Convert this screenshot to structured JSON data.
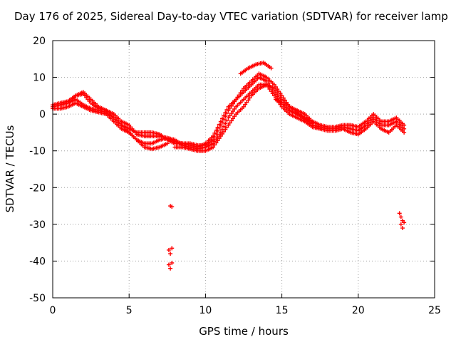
{
  "chart_data": {
    "type": "scatter",
    "title": "Day 176 of 2025, Sidereal Day-to-day VTEC variation (SDTVAR) for receiver lamp",
    "xlabel": "GPS time / hours",
    "ylabel": "SDTVAR / TECUs",
    "xlim": [
      0,
      25
    ],
    "ylim": [
      -50,
      20
    ],
    "xticks": [
      0,
      5,
      10,
      15,
      20,
      25
    ],
    "yticks": [
      -50,
      -40,
      -30,
      -20,
      -10,
      0,
      10,
      20
    ],
    "grid": true,
    "marker": "+",
    "color": "#ff0000",
    "series": [
      {
        "name": "SDTVAR",
        "tracks": [
          [
            [
              0,
              2
            ],
            [
              0.5,
              2.5
            ],
            [
              1,
              3
            ],
            [
              1.5,
              4
            ],
            [
              2,
              2.5
            ],
            [
              2.5,
              1.5
            ],
            [
              3,
              1
            ],
            [
              3.5,
              0.5
            ],
            [
              4,
              -1
            ],
            [
              4.5,
              -3
            ],
            [
              5,
              -4
            ],
            [
              5.5,
              -5
            ],
            [
              6,
              -5
            ],
            [
              6.5,
              -5
            ],
            [
              7,
              -5.5
            ],
            [
              7.5,
              -7
            ],
            [
              8,
              -8
            ],
            [
              8.5,
              -8
            ],
            [
              9,
              -8.5
            ],
            [
              9.5,
              -9
            ],
            [
              10,
              -8
            ],
            [
              10.5,
              -6
            ],
            [
              11,
              -2
            ],
            [
              11.5,
              2
            ],
            [
              12,
              4
            ],
            [
              12.5,
              6
            ],
            [
              13,
              8
            ],
            [
              13.5,
              10
            ],
            [
              14,
              9
            ],
            [
              14.5,
              6
            ],
            [
              15,
              3
            ],
            [
              15.5,
              1
            ],
            [
              16,
              0
            ],
            [
              16.5,
              -1
            ],
            [
              17,
              -3
            ],
            [
              17.5,
              -3.5
            ],
            [
              18,
              -4
            ],
            [
              18.5,
              -4
            ],
            [
              19,
              -3.5
            ],
            [
              19.5,
              -4
            ],
            [
              20,
              -4.5
            ],
            [
              20.5,
              -3
            ],
            [
              21,
              -1
            ],
            [
              21.5,
              -3
            ],
            [
              22,
              -3
            ],
            [
              22.5,
              -2
            ],
            [
              23,
              -4
            ]
          ],
          [
            [
              0,
              1.5
            ],
            [
              0.5,
              1.5
            ],
            [
              1,
              2
            ],
            [
              1.5,
              3
            ],
            [
              2,
              2
            ],
            [
              2.5,
              1
            ],
            [
              3,
              0.5
            ],
            [
              3.5,
              0
            ],
            [
              4,
              -2
            ],
            [
              4.5,
              -4
            ],
            [
              5,
              -5
            ],
            [
              5.5,
              -7
            ],
            [
              6,
              -8
            ],
            [
              6.5,
              -8
            ],
            [
              7,
              -7
            ],
            [
              7.5,
              -6.5
            ],
            [
              8,
              -7
            ],
            [
              8.5,
              -8.5
            ],
            [
              9,
              -9
            ],
            [
              9.5,
              -9.5
            ],
            [
              10,
              -9
            ],
            [
              10.5,
              -8
            ],
            [
              11,
              -5
            ],
            [
              11.5,
              -1
            ],
            [
              12,
              2
            ],
            [
              12.5,
              4
            ],
            [
              13,
              6
            ],
            [
              13.5,
              8
            ],
            [
              14,
              8
            ],
            [
              14.5,
              5
            ],
            [
              15,
              2
            ],
            [
              15.5,
              0
            ],
            [
              16,
              -1
            ],
            [
              16.5,
              -2
            ],
            [
              17,
              -3.5
            ],
            [
              17.5,
              -4
            ],
            [
              18,
              -4.5
            ],
            [
              18.5,
              -4.5
            ],
            [
              19,
              -4
            ],
            [
              19.5,
              -5
            ],
            [
              20,
              -5.5
            ],
            [
              20.5,
              -4
            ],
            [
              21,
              -2
            ],
            [
              21.5,
              -4
            ],
            [
              22,
              -5
            ],
            [
              22.5,
              -3
            ],
            [
              23,
              -5
            ]
          ],
          [
            [
              0,
              2.5
            ],
            [
              0.5,
              3
            ],
            [
              1,
              3.5
            ],
            [
              1.5,
              5
            ],
            [
              2,
              5.5
            ],
            [
              2.5,
              3
            ],
            [
              3,
              1.5
            ],
            [
              3.5,
              1
            ],
            [
              4,
              0
            ],
            [
              4.5,
              -2
            ],
            [
              5,
              -3
            ],
            [
              5.5,
              -5.5
            ],
            [
              6,
              -6
            ],
            [
              6.5,
              -6
            ],
            [
              7,
              -6
            ],
            [
              7.5,
              -6.5
            ],
            [
              8,
              -7.5
            ],
            [
              8.5,
              -8
            ],
            [
              9,
              -8
            ],
            [
              9.5,
              -8.5
            ],
            [
              10,
              -8.5
            ],
            [
              10.5,
              -7
            ],
            [
              11,
              -3
            ],
            [
              11.5,
              1
            ],
            [
              12,
              4
            ],
            [
              12.5,
              7
            ],
            [
              13,
              9
            ],
            [
              13.5,
              11
            ],
            [
              14,
              10
            ],
            [
              14.5,
              8
            ],
            [
              15,
              5
            ],
            [
              15.5,
              2
            ],
            [
              16,
              1
            ],
            [
              16.5,
              0
            ],
            [
              17,
              -2
            ],
            [
              17.5,
              -3
            ],
            [
              18,
              -3.5
            ],
            [
              18.5,
              -3.5
            ],
            [
              19,
              -3
            ],
            [
              19.5,
              -3
            ],
            [
              20,
              -3.5
            ],
            [
              20.5,
              -2
            ],
            [
              21,
              0
            ],
            [
              21.5,
              -2
            ],
            [
              22,
              -2
            ],
            [
              22.5,
              -1
            ],
            [
              23,
              -3
            ]
          ],
          [
            [
              1,
              3
            ],
            [
              1.5,
              5
            ],
            [
              2,
              6
            ],
            [
              2.5,
              4
            ],
            [
              3,
              2
            ],
            [
              3.5,
              1
            ],
            [
              4,
              -1
            ],
            [
              4.5,
              -3
            ],
            [
              5,
              -5
            ],
            [
              5.5,
              -7
            ],
            [
              6,
              -9
            ],
            [
              6.5,
              -9.5
            ],
            [
              7,
              -9
            ],
            [
              7.5,
              -8
            ]
          ],
          [
            [
              8,
              -9
            ],
            [
              8.5,
              -9
            ],
            [
              9,
              -9.5
            ],
            [
              9.5,
              -10
            ],
            [
              10,
              -10
            ],
            [
              10.5,
              -9
            ],
            [
              11,
              -6
            ],
            [
              11.5,
              -3
            ],
            [
              12,
              0
            ],
            [
              12.5,
              2
            ],
            [
              13,
              5
            ],
            [
              13.5,
              7
            ],
            [
              14,
              8
            ],
            [
              14.5,
              7
            ],
            [
              15,
              4
            ],
            [
              15.5,
              2
            ],
            [
              16,
              0.5
            ],
            [
              16.5,
              -1
            ],
            [
              17,
              -2
            ]
          ],
          [
            [
              12.3,
              11
            ],
            [
              12.8,
              12.5
            ],
            [
              13.3,
              13.5
            ],
            [
              13.8,
              14
            ],
            [
              14.3,
              12.5
            ]
          ],
          [
            [
              14.6,
              4
            ],
            [
              15,
              3
            ],
            [
              15.5,
              1
            ],
            [
              16,
              0
            ],
            [
              16.5,
              -1.5
            ],
            [
              17,
              -2.5
            ]
          ]
        ],
        "outliers": [
          [
            7.7,
            -25
          ],
          [
            7.8,
            -25.2
          ],
          [
            7.6,
            -37
          ],
          [
            7.7,
            -38
          ],
          [
            7.8,
            -36.5
          ],
          [
            7.6,
            -41
          ],
          [
            7.7,
            -42
          ],
          [
            7.8,
            -40.5
          ],
          [
            22.7,
            -27
          ],
          [
            22.8,
            -28
          ],
          [
            22.9,
            -29
          ],
          [
            22.8,
            -30
          ],
          [
            22.9,
            -31
          ],
          [
            23,
            -29.5
          ]
        ]
      }
    ]
  }
}
